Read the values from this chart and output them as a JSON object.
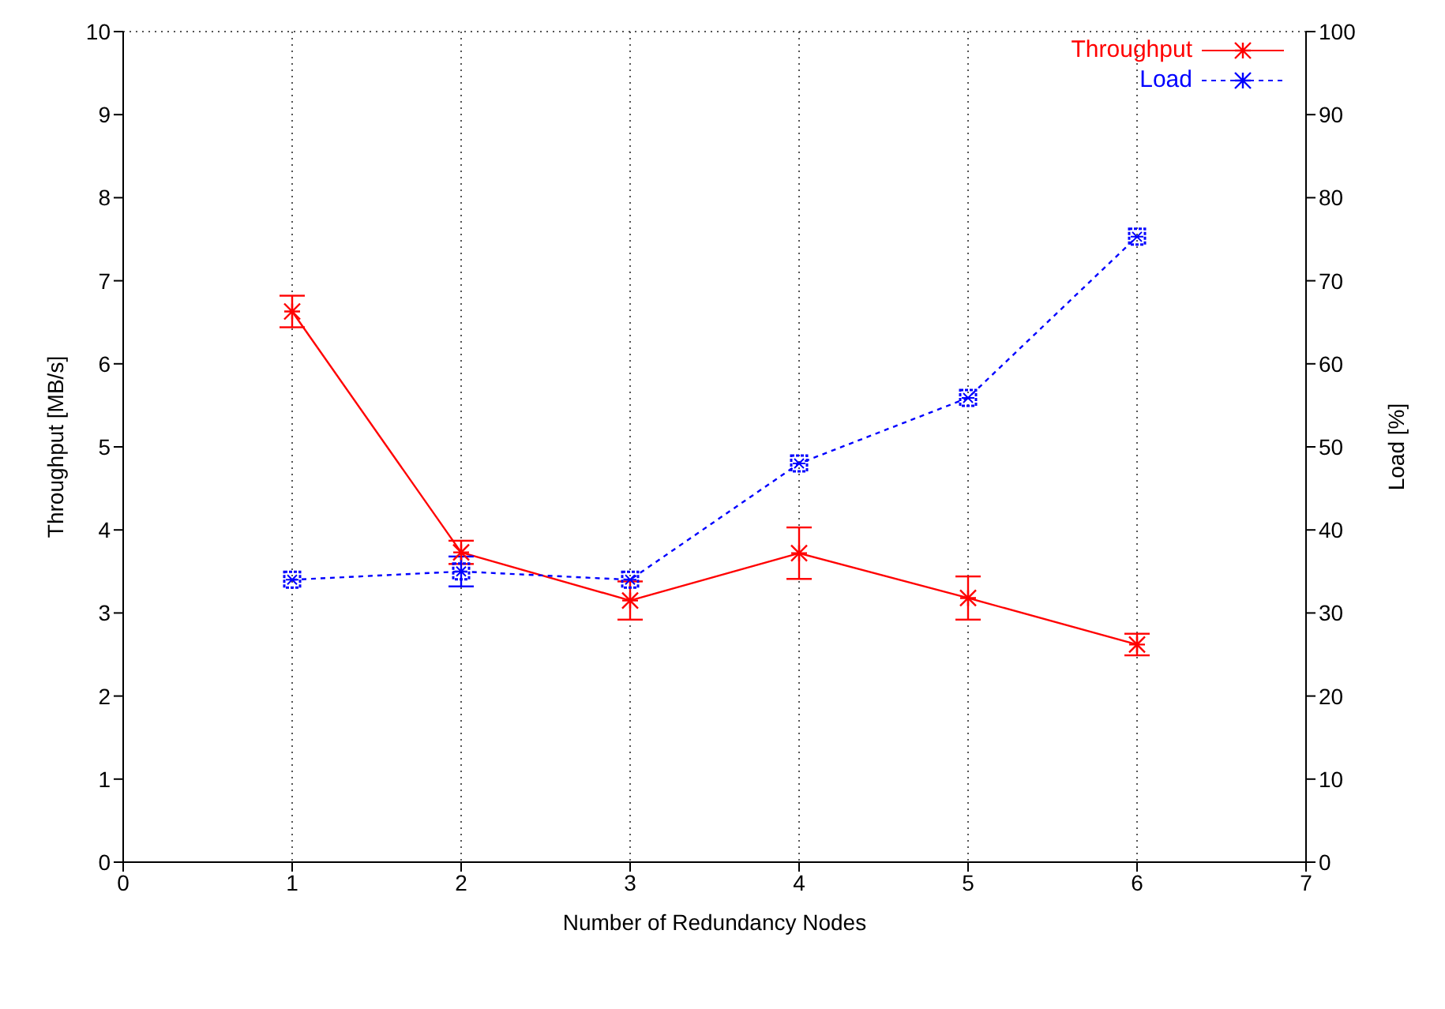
{
  "chart_data": {
    "type": "line",
    "xlabel": "Number of Redundancy Nodes",
    "ylabel": "Throughput [MB/s]",
    "y2label": "Load [%]",
    "x": [
      1,
      2,
      3,
      4,
      5,
      6
    ],
    "series": [
      {
        "name": "Throughput",
        "color": "#ff0000",
        "values": [
          6.63,
          3.73,
          3.15,
          3.72,
          3.18,
          2.62
        ],
        "errors": [
          0.19,
          0.14,
          0.23,
          0.31,
          0.26,
          0.13
        ],
        "marker": "cross",
        "line_style": "solid"
      },
      {
        "name": "Load",
        "color": "#0000ff",
        "values": [
          34,
          35,
          34,
          48,
          55.9,
          75.3
        ],
        "errors": [
          null,
          1.8,
          null,
          null,
          null,
          null
        ],
        "axis": "y2",
        "marker": "square",
        "line_style": "dashed"
      }
    ],
    "xlim": [
      0,
      7
    ],
    "xticks": [
      0,
      1,
      2,
      3,
      4,
      5,
      6,
      7
    ],
    "ylim": [
      0,
      10
    ],
    "yticks": [
      0,
      1,
      2,
      3,
      4,
      5,
      6,
      7,
      8,
      9,
      10
    ],
    "y2lim": [
      0,
      100
    ],
    "y2ticks": [
      0,
      10,
      20,
      30,
      40,
      50,
      60,
      70,
      80,
      90,
      100
    ],
    "grid": true,
    "legend": "top right"
  }
}
